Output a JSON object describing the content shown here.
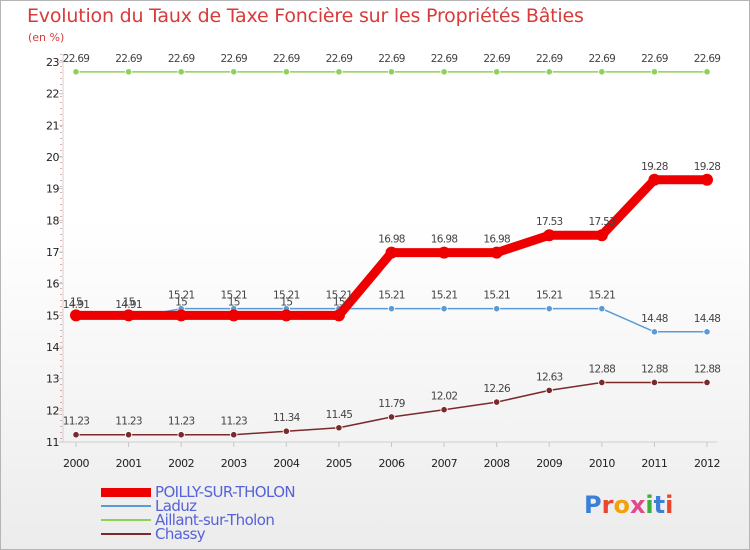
{
  "title": "Evolution du Taux de Taxe Foncière sur les Propriétés Bâties",
  "unit_label": "(en %)",
  "logo": {
    "text": "Proxiti",
    "letters": [
      {
        "ch": "P",
        "color": "#3b7fd6"
      },
      {
        "ch": "r",
        "color": "#e9462f"
      },
      {
        "ch": "o",
        "color": "#f2a10c"
      },
      {
        "ch": "x",
        "color": "#e04a8d"
      },
      {
        "ch": "i",
        "color": "#3cae3c"
      },
      {
        "ch": "t",
        "color": "#3b7fd6"
      },
      {
        "ch": "i",
        "color": "#e9462f"
      }
    ]
  },
  "chart_data": {
    "type": "line",
    "title": "Evolution du Taux de Taxe Foncière sur les Propriétés Bâties",
    "ylabel": "(en %)",
    "xlabel": "",
    "ylim": [
      11,
      23
    ],
    "yticks": [
      "11",
      "12",
      "13",
      "14",
      "15",
      "16",
      "17",
      "18",
      "19",
      "20",
      "21",
      "22",
      "23"
    ],
    "categories": [
      "2000",
      "2001",
      "2002",
      "2003",
      "2004",
      "2005",
      "2006",
      "2007",
      "2008",
      "2009",
      "2010",
      "2011",
      "2012"
    ],
    "grid": false,
    "legend_position": "bottom-left",
    "series": [
      {
        "name": "POILLY-SUR-THOLON",
        "color": "#ee0000",
        "emphasis": true,
        "values": [
          15,
          15,
          15,
          15,
          15,
          15,
          16.98,
          16.98,
          16.98,
          17.53,
          17.53,
          19.28,
          19.28
        ],
        "labels": [
          "15",
          "15",
          "15",
          "15",
          "15",
          "15",
          "16.98",
          "16.98",
          "16.98",
          "17.53",
          "17.53",
          "19.28",
          "19.28"
        ]
      },
      {
        "name": "Laduz",
        "color": "#5b9bd5",
        "emphasis": false,
        "values": [
          14.91,
          14.91,
          15.21,
          15.21,
          15.21,
          15.21,
          15.21,
          15.21,
          15.21,
          15.21,
          15.21,
          14.48,
          14.48
        ],
        "labels": [
          "14.91",
          "14.91",
          "15.21",
          "15.21",
          "15.21",
          "15.21",
          "15.21",
          "15.21",
          "15.21",
          "15.21",
          "15.21",
          "14.48",
          "14.48"
        ]
      },
      {
        "name": "Aillant-sur-Tholon",
        "color": "#8fd05a",
        "emphasis": false,
        "values": [
          22.69,
          22.69,
          22.69,
          22.69,
          22.69,
          22.69,
          22.69,
          22.69,
          22.69,
          22.69,
          22.69,
          22.69,
          22.69
        ],
        "labels": [
          "22.69",
          "22.69",
          "22.69",
          "22.69",
          "22.69",
          "22.69",
          "22.69",
          "22.69",
          "22.69",
          "22.69",
          "22.69",
          "22.69",
          "22.69"
        ]
      },
      {
        "name": "Chassy",
        "color": "#7a2a2a",
        "emphasis": false,
        "values": [
          11.23,
          11.23,
          11.23,
          11.23,
          11.34,
          11.45,
          11.79,
          12.02,
          12.26,
          12.63,
          12.88,
          12.88,
          12.88
        ],
        "labels": [
          "11.23",
          "11.23",
          "11.23",
          "11.23",
          "11.34",
          "11.45",
          "11.79",
          "12.02",
          "12.26",
          "12.63",
          "12.88",
          "12.88",
          "12.88"
        ]
      }
    ]
  }
}
